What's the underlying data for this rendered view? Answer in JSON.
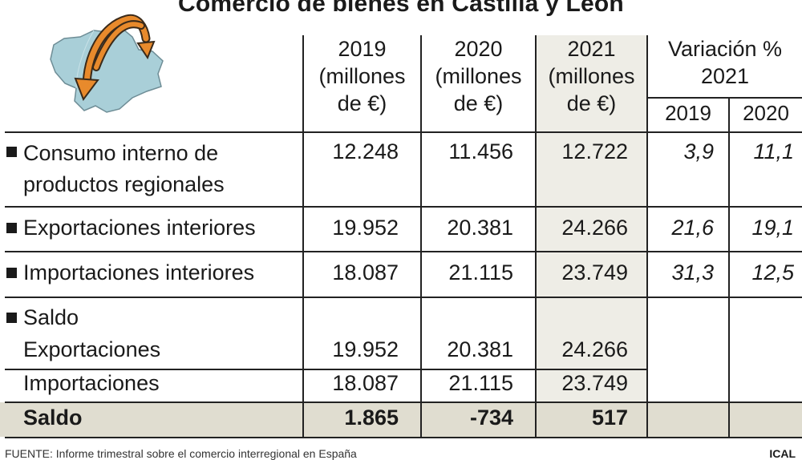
{
  "title": "Comercio de bienes en Castilla y León",
  "headers": {
    "y2019": "2019",
    "y2020": "2020",
    "y2021": "2021",
    "unit_line1": "(millones",
    "unit_line2": "de €)",
    "variation_line1": "Variación %",
    "variation_line2": "2021",
    "var_2019": "2019",
    "var_2020": "2020"
  },
  "rows": [
    {
      "label_line1": "Consumo interno de",
      "label_line2": "productos regionales",
      "v2019": "12.248",
      "v2020": "11.456",
      "v2021": "12.722",
      "var2019": "3,9",
      "var2020": "11,1"
    },
    {
      "label_line1": "Exportaciones interiores",
      "v2019": "19.952",
      "v2020": "20.381",
      "v2021": "24.266",
      "var2019": "21,6",
      "var2020": "19,1"
    },
    {
      "label_line1": "Importaciones interiores",
      "v2019": "18.087",
      "v2020": "21.115",
      "v2021": "23.749",
      "var2019": "31,3",
      "var2020": "12,5"
    }
  ],
  "saldo_section": {
    "heading": "Saldo",
    "exports_label": "Exportaciones",
    "exports": {
      "v2019": "19.952",
      "v2020": "20.381",
      "v2021": "24.266"
    },
    "imports_label": "Importaciones",
    "imports": {
      "v2019": "18.087",
      "v2020": "21.115",
      "v2021": "23.749"
    }
  },
  "total": {
    "label": "Saldo",
    "v2019": "1.865",
    "v2020": "-734",
    "v2021": "517"
  },
  "footer": "FUENTE: Informe trimestral sobre el comercio interregional en España",
  "credit": "ICAL",
  "colors": {
    "highlight_column": "#eeede6",
    "total_row": "#e0ddd0",
    "map_fill": "#a9cfd8",
    "arrow_fill": "#e88a2c"
  },
  "icons": {
    "map": "castilla-leon-map-icon",
    "arrows": "trade-flow-arrows-icon"
  }
}
